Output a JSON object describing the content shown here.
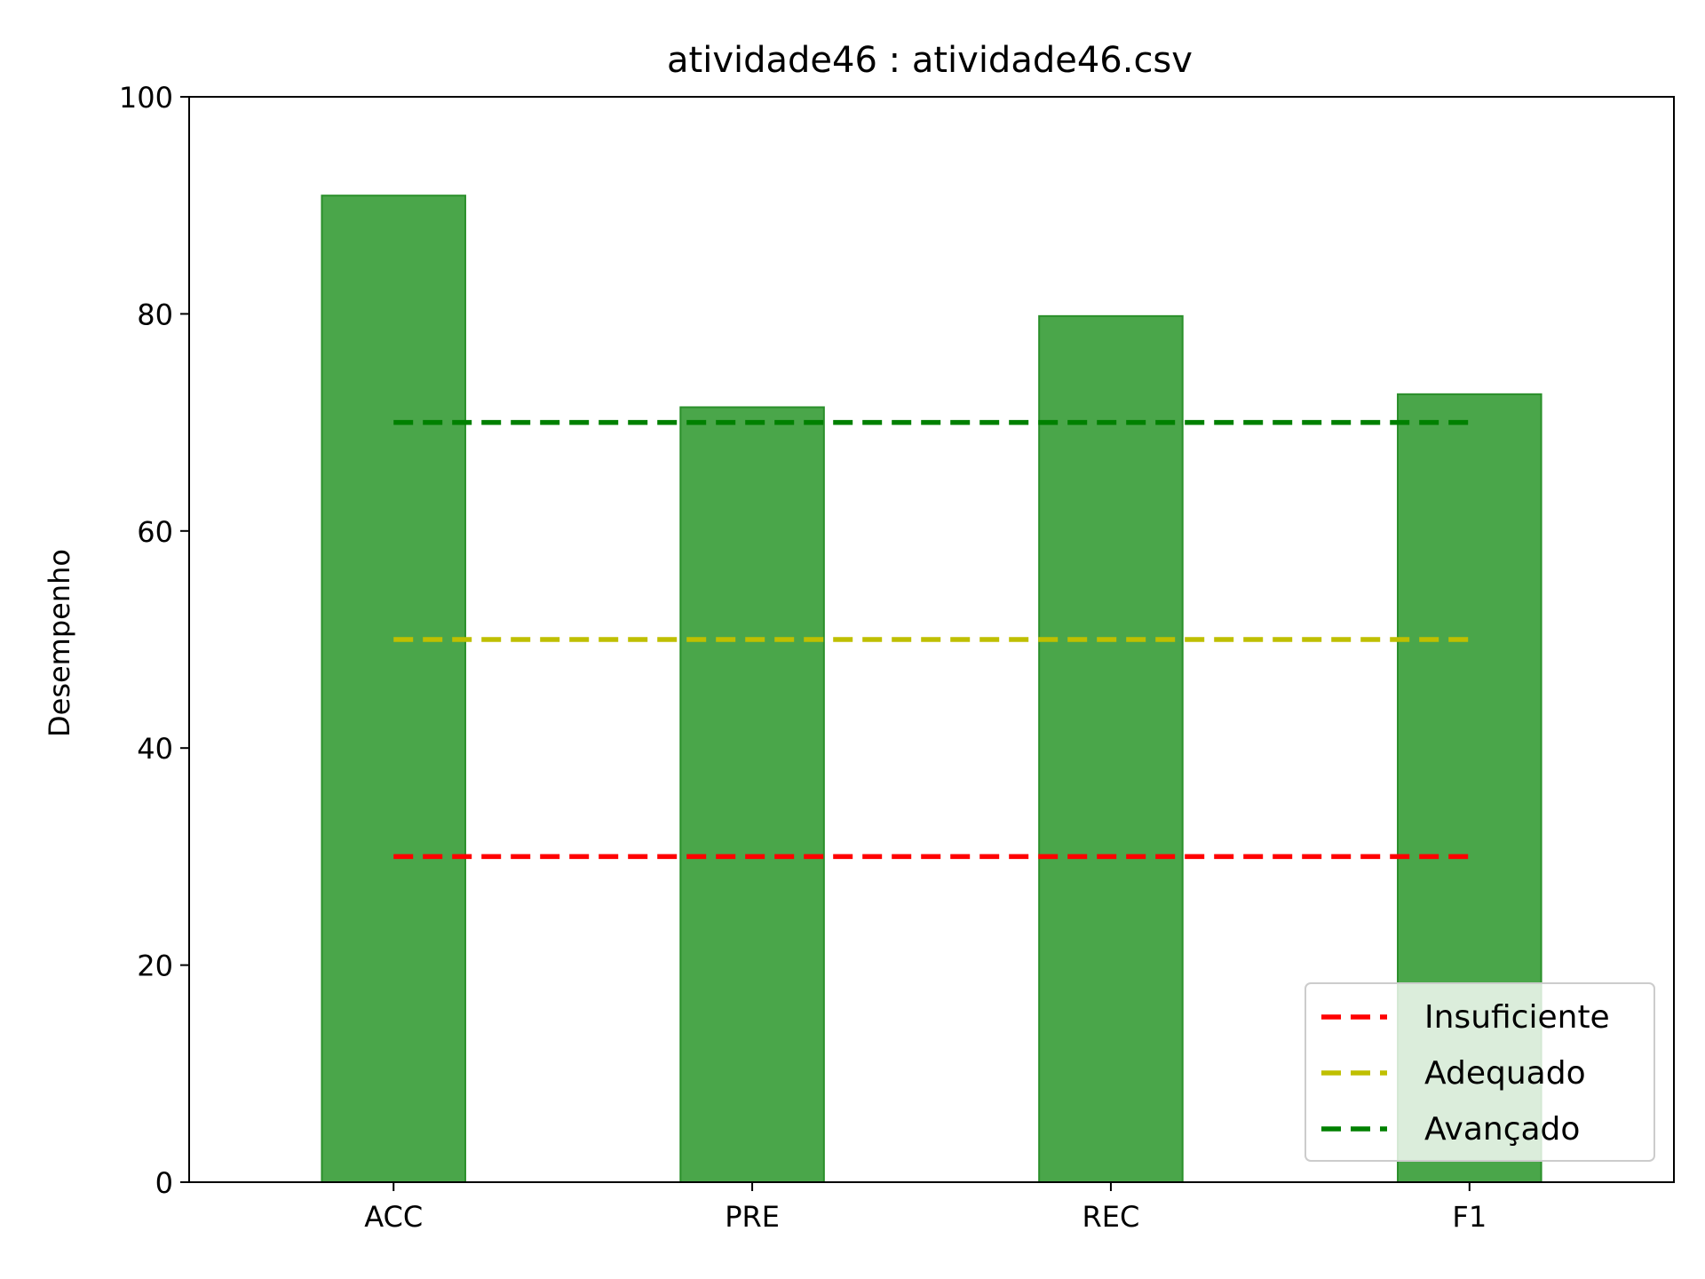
{
  "chart_data": {
    "type": "bar",
    "title": "atividade46 : atividade46.csv",
    "xlabel": "",
    "ylabel": "Desempenho",
    "categories": [
      "ACC",
      "PRE",
      "REC",
      "F1"
    ],
    "values": [
      90.9,
      71.4,
      79.8,
      72.6
    ],
    "ylim": [
      0,
      100
    ],
    "yticks": [
      0,
      20,
      40,
      60,
      80,
      100
    ],
    "bar_color": "#4aa64a",
    "bar_edge_color": "#2a8f2a",
    "reference_lines": [
      {
        "name": "Insuficiente",
        "value": 30,
        "color": "#ff0000"
      },
      {
        "name": "Adequado",
        "value": 50,
        "color": "#bfbf00"
      },
      {
        "name": "Avançado",
        "value": 70,
        "color": "#008000"
      }
    ],
    "grid": false,
    "legend_position": "lower right"
  }
}
